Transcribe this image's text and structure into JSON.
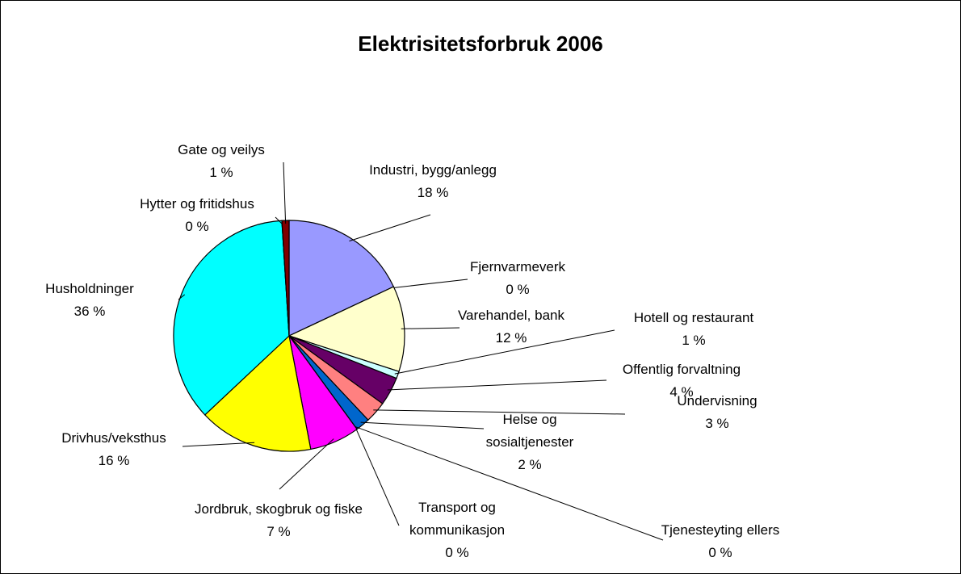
{
  "chart_data": {
    "type": "pie",
    "title": "Elektrisitetsforbruk 2006",
    "categories": [
      "Industri, bygg/anlegg",
      "Fjernvarmeverk",
      "Varehandel, bank",
      "Hotell og restaurant",
      "Offentlig forvaltning",
      "Undervisning",
      "Helse og sosialtjenester",
      "Tjenesteyting ellers",
      "Transport og kommunikasjon",
      "Jordbruk, skogbruk og fiske",
      "Drivhus/veksthus",
      "Husholdninger",
      "Hytter og fritidshus",
      "Gate og veilys"
    ],
    "values": [
      18,
      0,
      12,
      1,
      4,
      3,
      2,
      0,
      0,
      7,
      16,
      36,
      0,
      1
    ],
    "value_labels": [
      "18 %",
      "0 %",
      "12 %",
      "1 %",
      "4 %",
      "3 %",
      "2 %",
      "0 %",
      "0 %",
      "7 %",
      "16 %",
      "36 %",
      "0 %",
      "1 %"
    ],
    "colors": [
      "#9999ff",
      "#993366",
      "#ffffcc",
      "#ccffff",
      "#660066",
      "#ff8080",
      "#0066cc",
      "#ccccff",
      "#000080",
      "#ff00ff",
      "#ffff00",
      "#00ffff",
      "#800080",
      "#800000"
    ]
  }
}
